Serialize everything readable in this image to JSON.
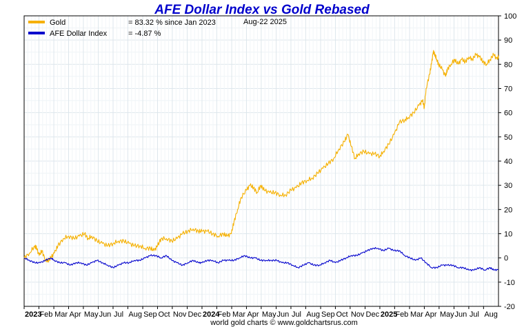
{
  "chart_data": {
    "type": "line",
    "title": "AFE Dollar Index vs Gold Rebased",
    "date_label": "Aug-22  2025",
    "credit": "world gold charts © www.goldchartsrus.com",
    "ylim": [
      -20,
      100
    ],
    "y_ticks": [
      -20,
      -10,
      0,
      10,
      20,
      30,
      40,
      50,
      60,
      70,
      80,
      90,
      100
    ],
    "grid": true,
    "legend_placement": "top-left",
    "x_range": [
      2023.0,
      2025.667
    ],
    "x_tick_labels": [
      {
        "t": 2023.0,
        "label": "2023",
        "year": true
      },
      {
        "t": 2023.083,
        "label": "Feb"
      },
      {
        "t": 2023.167,
        "label": "Mar"
      },
      {
        "t": 2023.25,
        "label": "Apr"
      },
      {
        "t": 2023.333,
        "label": "May"
      },
      {
        "t": 2023.417,
        "label": "Jun"
      },
      {
        "t": 2023.5,
        "label": "Jul"
      },
      {
        "t": 2023.583,
        "label": "Aug"
      },
      {
        "t": 2023.667,
        "label": "Sep"
      },
      {
        "t": 2023.75,
        "label": "Oct"
      },
      {
        "t": 2023.833,
        "label": "Nov"
      },
      {
        "t": 2023.917,
        "label": "Dec"
      },
      {
        "t": 2024.0,
        "label": "2024",
        "year": true
      },
      {
        "t": 2024.083,
        "label": "Feb"
      },
      {
        "t": 2024.167,
        "label": "Mar"
      },
      {
        "t": 2024.25,
        "label": "Apr"
      },
      {
        "t": 2024.333,
        "label": "May"
      },
      {
        "t": 2024.417,
        "label": "Jun"
      },
      {
        "t": 2024.5,
        "label": "Jul"
      },
      {
        "t": 2024.583,
        "label": "Aug"
      },
      {
        "t": 2024.667,
        "label": "Sep"
      },
      {
        "t": 2024.75,
        "label": "Oct"
      },
      {
        "t": 2024.833,
        "label": "Nov"
      },
      {
        "t": 2024.917,
        "label": "Dec"
      },
      {
        "t": 2025.0,
        "label": "2025",
        "year": true
      },
      {
        "t": 2025.083,
        "label": "Feb"
      },
      {
        "t": 2025.167,
        "label": "Mar"
      },
      {
        "t": 2025.25,
        "label": "Apr"
      },
      {
        "t": 2025.333,
        "label": "May"
      },
      {
        "t": 2025.417,
        "label": "Jun"
      },
      {
        "t": 2025.5,
        "label": "Jul"
      },
      {
        "t": 2025.583,
        "label": "Aug"
      }
    ],
    "series": [
      {
        "name": "Gold",
        "legend_value": "= 83.32 % since Jan 2023",
        "color": "#f5b000",
        "points": [
          [
            2023.0,
            0
          ],
          [
            2023.03,
            2
          ],
          [
            2023.06,
            5
          ],
          [
            2023.07,
            4
          ],
          [
            2023.085,
            1
          ],
          [
            2023.1,
            3
          ],
          [
            2023.12,
            -1
          ],
          [
            2023.135,
            -1
          ],
          [
            2023.15,
            0
          ],
          [
            2023.17,
            2
          ],
          [
            2023.19,
            5
          ],
          [
            2023.22,
            8
          ],
          [
            2023.25,
            9
          ],
          [
            2023.28,
            8
          ],
          [
            2023.31,
            9
          ],
          [
            2023.34,
            10
          ],
          [
            2023.36,
            8
          ],
          [
            2023.38,
            9
          ],
          [
            2023.41,
            7
          ],
          [
            2023.44,
            6
          ],
          [
            2023.47,
            5
          ],
          [
            2023.5,
            6
          ],
          [
            2023.53,
            7
          ],
          [
            2023.56,
            7
          ],
          [
            2023.59,
            6
          ],
          [
            2023.62,
            5
          ],
          [
            2023.65,
            5
          ],
          [
            2023.68,
            4
          ],
          [
            2023.71,
            4
          ],
          [
            2023.73,
            3
          ],
          [
            2023.75,
            5
          ],
          [
            2023.77,
            8
          ],
          [
            2023.8,
            8
          ],
          [
            2023.83,
            7
          ],
          [
            2023.86,
            8
          ],
          [
            2023.89,
            10
          ],
          [
            2023.92,
            11
          ],
          [
            2023.95,
            12
          ],
          [
            2023.98,
            11
          ],
          [
            2024.0,
            11
          ],
          [
            2024.03,
            11
          ],
          [
            2024.06,
            10
          ],
          [
            2024.09,
            9
          ],
          [
            2024.12,
            10
          ],
          [
            2024.14,
            9
          ],
          [
            2024.165,
            10
          ],
          [
            2024.18,
            15
          ],
          [
            2024.2,
            20
          ],
          [
            2024.22,
            25
          ],
          [
            2024.25,
            28
          ],
          [
            2024.27,
            30
          ],
          [
            2024.29,
            29
          ],
          [
            2024.31,
            27
          ],
          [
            2024.33,
            30
          ],
          [
            2024.35,
            28
          ],
          [
            2024.38,
            27
          ],
          [
            2024.41,
            27
          ],
          [
            2024.44,
            26
          ],
          [
            2024.47,
            26
          ],
          [
            2024.5,
            28
          ],
          [
            2024.53,
            29
          ],
          [
            2024.56,
            31
          ],
          [
            2024.59,
            32
          ],
          [
            2024.62,
            33
          ],
          [
            2024.65,
            35
          ],
          [
            2024.68,
            37
          ],
          [
            2024.71,
            39
          ],
          [
            2024.74,
            41
          ],
          [
            2024.77,
            45
          ],
          [
            2024.8,
            48
          ],
          [
            2024.82,
            51
          ],
          [
            2024.84,
            46
          ],
          [
            2024.86,
            41
          ],
          [
            2024.88,
            43
          ],
          [
            2024.91,
            44
          ],
          [
            2024.94,
            43
          ],
          [
            2024.97,
            43
          ],
          [
            2025.0,
            42
          ],
          [
            2025.02,
            44
          ],
          [
            2025.05,
            47
          ],
          [
            2025.08,
            51
          ],
          [
            2025.11,
            56
          ],
          [
            2025.14,
            57
          ],
          [
            2025.16,
            58
          ],
          [
            2025.19,
            60
          ],
          [
            2025.22,
            63
          ],
          [
            2025.24,
            65
          ],
          [
            2025.25,
            62
          ],
          [
            2025.26,
            70
          ],
          [
            2025.28,
            76
          ],
          [
            2025.29,
            80
          ],
          [
            2025.3,
            85
          ],
          [
            2025.31,
            84
          ],
          [
            2025.32,
            82
          ],
          [
            2025.33,
            80
          ],
          [
            2025.35,
            78
          ],
          [
            2025.37,
            75
          ],
          [
            2025.38,
            78
          ],
          [
            2025.4,
            80
          ],
          [
            2025.42,
            82
          ],
          [
            2025.44,
            80
          ],
          [
            2025.46,
            82
          ],
          [
            2025.48,
            81
          ],
          [
            2025.5,
            83
          ],
          [
            2025.52,
            82
          ],
          [
            2025.54,
            84
          ],
          [
            2025.56,
            83
          ],
          [
            2025.58,
            81
          ],
          [
            2025.6,
            80
          ],
          [
            2025.62,
            82
          ],
          [
            2025.64,
            84
          ],
          [
            2025.66,
            82
          ],
          [
            2025.667,
            83.32
          ]
        ]
      },
      {
        "name": "AFE Dollar Index",
        "legend_value": "= -4.87 %",
        "color": "#0000cc",
        "points": [
          [
            2023.0,
            0
          ],
          [
            2023.03,
            -1
          ],
          [
            2023.06,
            -2
          ],
          [
            2023.09,
            -2
          ],
          [
            2023.12,
            -1
          ],
          [
            2023.15,
            0
          ],
          [
            2023.17,
            -1
          ],
          [
            2023.2,
            -2
          ],
          [
            2023.23,
            -2
          ],
          [
            2023.26,
            -3
          ],
          [
            2023.29,
            -2
          ],
          [
            2023.32,
            -2
          ],
          [
            2023.35,
            -3
          ],
          [
            2023.38,
            -2
          ],
          [
            2023.41,
            -1
          ],
          [
            2023.44,
            -2
          ],
          [
            2023.47,
            -3
          ],
          [
            2023.5,
            -4
          ],
          [
            2023.53,
            -3
          ],
          [
            2023.56,
            -2
          ],
          [
            2023.59,
            -2
          ],
          [
            2023.62,
            -1
          ],
          [
            2023.65,
            -1
          ],
          [
            2023.68,
            0
          ],
          [
            2023.71,
            1
          ],
          [
            2023.74,
            1
          ],
          [
            2023.77,
            0
          ],
          [
            2023.8,
            1
          ],
          [
            2023.83,
            -1
          ],
          [
            2023.86,
            -2
          ],
          [
            2023.89,
            -3
          ],
          [
            2023.92,
            -2
          ],
          [
            2023.95,
            -1
          ],
          [
            2023.98,
            -2
          ],
          [
            2024.0,
            -2
          ],
          [
            2024.03,
            -1
          ],
          [
            2024.06,
            -1
          ],
          [
            2024.09,
            -2
          ],
          [
            2024.12,
            -1
          ],
          [
            2024.15,
            -1
          ],
          [
            2024.18,
            -1
          ],
          [
            2024.21,
            0
          ],
          [
            2024.24,
            1
          ],
          [
            2024.27,
            0
          ],
          [
            2024.3,
            0
          ],
          [
            2024.33,
            -1
          ],
          [
            2024.36,
            -1
          ],
          [
            2024.39,
            -1
          ],
          [
            2024.42,
            -1
          ],
          [
            2024.45,
            -2
          ],
          [
            2024.48,
            -2
          ],
          [
            2024.51,
            -3
          ],
          [
            2024.54,
            -4
          ],
          [
            2024.57,
            -3
          ],
          [
            2024.6,
            -2
          ],
          [
            2024.63,
            -3
          ],
          [
            2024.66,
            -3
          ],
          [
            2024.69,
            -2
          ],
          [
            2024.72,
            -1
          ],
          [
            2024.75,
            -2
          ],
          [
            2024.78,
            -1
          ],
          [
            2024.81,
            0
          ],
          [
            2024.84,
            1
          ],
          [
            2024.87,
            1
          ],
          [
            2024.9,
            2
          ],
          [
            2024.93,
            3
          ],
          [
            2024.96,
            4
          ],
          [
            2024.99,
            4
          ],
          [
            2025.02,
            3
          ],
          [
            2025.05,
            4
          ],
          [
            2025.08,
            3
          ],
          [
            2025.11,
            3
          ],
          [
            2025.14,
            1
          ],
          [
            2025.17,
            0
          ],
          [
            2025.2,
            -1
          ],
          [
            2025.23,
            0
          ],
          [
            2025.26,
            -2
          ],
          [
            2025.29,
            -4
          ],
          [
            2025.32,
            -4
          ],
          [
            2025.35,
            -3
          ],
          [
            2025.38,
            -3
          ],
          [
            2025.41,
            -3
          ],
          [
            2025.44,
            -4
          ],
          [
            2025.47,
            -4
          ],
          [
            2025.5,
            -5
          ],
          [
            2025.53,
            -5
          ],
          [
            2025.56,
            -4
          ],
          [
            2025.59,
            -5
          ],
          [
            2025.62,
            -4
          ],
          [
            2025.64,
            -5
          ],
          [
            2025.667,
            -4.87
          ]
        ]
      }
    ]
  }
}
